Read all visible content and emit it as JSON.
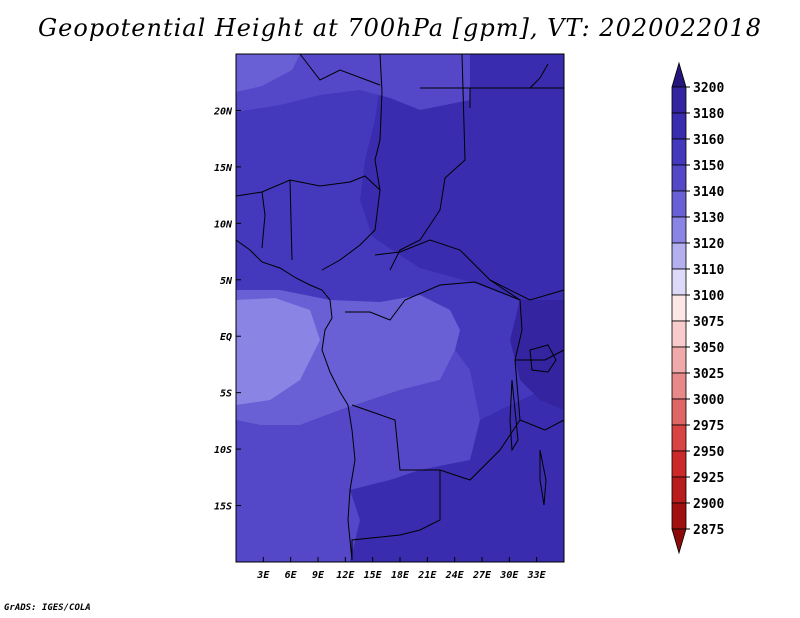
{
  "title": "Geopotential Height at 700hPa [gpm], VT: 2020022018",
  "credit": "GrADS: IGES/COLA",
  "map": {
    "lon_range": [
      0,
      36
    ],
    "lat_range": [
      -20,
      25
    ],
    "x_ticks": [
      {
        "lon": 3,
        "label": "3E"
      },
      {
        "lon": 6,
        "label": "6E"
      },
      {
        "lon": 9,
        "label": "9E"
      },
      {
        "lon": 12,
        "label": "12E"
      },
      {
        "lon": 15,
        "label": "15E"
      },
      {
        "lon": 18,
        "label": "18E"
      },
      {
        "lon": 21,
        "label": "21E"
      },
      {
        "lon": 24,
        "label": "24E"
      },
      {
        "lon": 27,
        "label": "27E"
      },
      {
        "lon": 30,
        "label": "30E"
      },
      {
        "lon": 33,
        "label": "33E"
      }
    ],
    "y_ticks": [
      {
        "lat": 20,
        "label": "20N"
      },
      {
        "lat": 15,
        "label": "15N"
      },
      {
        "lat": 10,
        "label": "10N"
      },
      {
        "lat": 5,
        "label": "5N"
      },
      {
        "lat": 0,
        "label": "EQ"
      },
      {
        "lat": -5,
        "label": "5S"
      },
      {
        "lat": -10,
        "label": "10S"
      },
      {
        "lat": -15,
        "label": "15S"
      }
    ]
  },
  "colorbar": {
    "levels": [
      {
        "label": "3200",
        "color": "#2e1c8c"
      },
      {
        "label": "3180",
        "color": "#3424a0"
      },
      {
        "label": "3160",
        "color": "#3a2cae"
      },
      {
        "label": "3150",
        "color": "#4438bc"
      },
      {
        "label": "3140",
        "color": "#5448c8"
      },
      {
        "label": "3130",
        "color": "#6a60d6"
      },
      {
        "label": "3120",
        "color": "#8a84e4"
      },
      {
        "label": "3110",
        "color": "#b4b0f0"
      },
      {
        "label": "3100",
        "color": "#dcdaf8"
      },
      {
        "label": "3075",
        "color": "#fde6e6"
      },
      {
        "label": "3050",
        "color": "#f8cccc"
      },
      {
        "label": "3025",
        "color": "#f0aaaa"
      },
      {
        "label": "3000",
        "color": "#e88888"
      },
      {
        "label": "2975",
        "color": "#e06666"
      },
      {
        "label": "2950",
        "color": "#d84444"
      },
      {
        "label": "2925",
        "color": "#cc2a2a"
      },
      {
        "label": "2900",
        "color": "#b81c1c"
      },
      {
        "label": "2875",
        "color": "#a01010"
      }
    ],
    "top_arrow_color": "#24167a",
    "bottom_arrow_color": "#8c0a0a"
  },
  "field_colors": {
    "c3180": "#3424a0",
    "c3160": "#3a2cae",
    "c3150": "#4438bc",
    "c3140": "#5448c8",
    "c3130": "#6a60d6",
    "c3120": "#8a84e4"
  }
}
